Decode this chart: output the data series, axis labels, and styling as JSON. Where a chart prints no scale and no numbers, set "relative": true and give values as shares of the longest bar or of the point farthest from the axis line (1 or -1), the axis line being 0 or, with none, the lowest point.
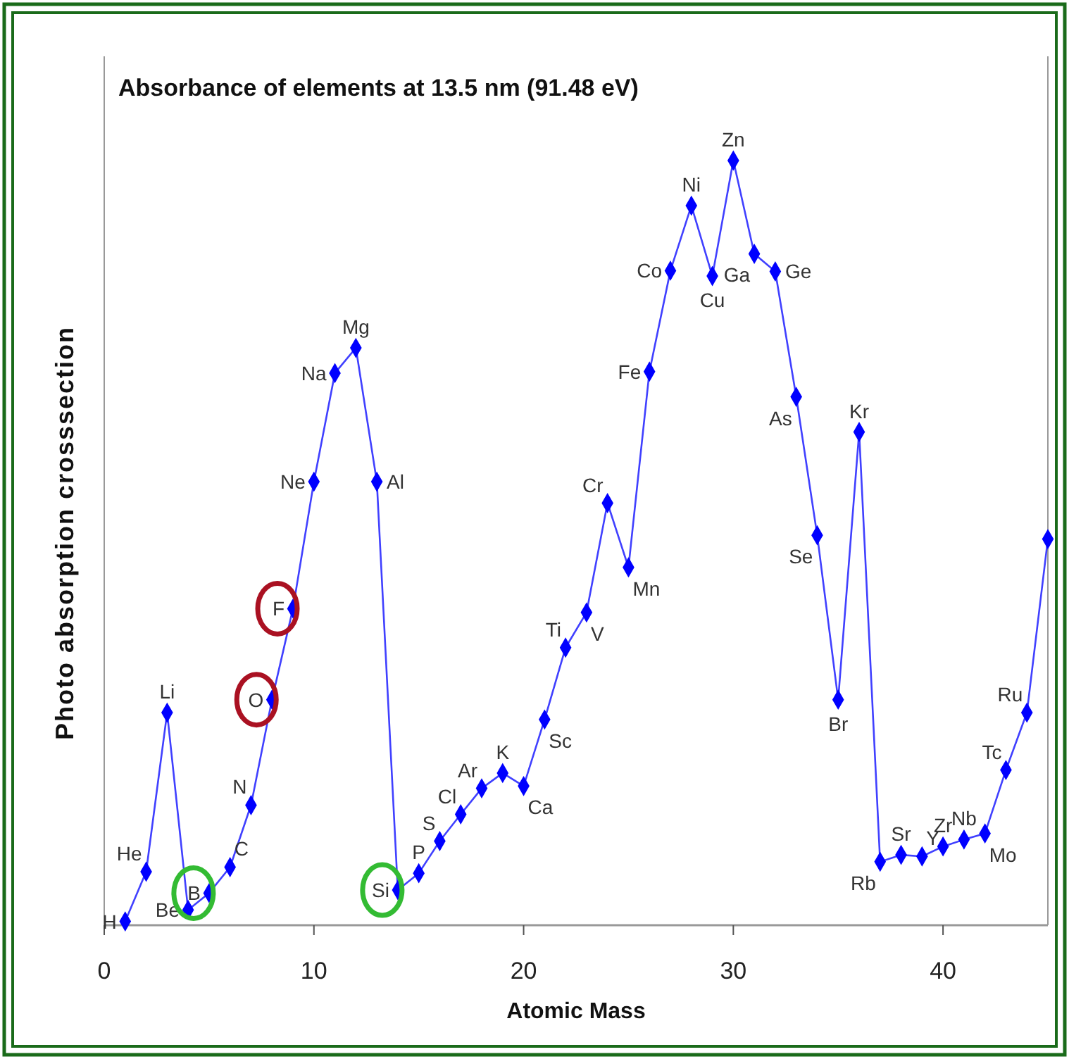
{
  "chart_data": {
    "type": "line",
    "title": "Absorbance of elements at 13.5 nm (91.48 eV)",
    "xlabel": "Atomic Mass",
    "ylabel": "Photo absorption crosssection",
    "relative": true,
    "marker": "diamond",
    "line_style": "solid",
    "xlim": [
      0,
      45
    ],
    "xticks": [
      0,
      10,
      20,
      30,
      40
    ],
    "x": [
      1,
      2,
      3,
      4,
      5,
      6,
      7,
      8,
      9,
      10,
      11,
      12,
      13,
      14,
      15,
      16,
      17,
      18,
      19,
      20,
      21,
      22,
      23,
      24,
      25,
      26,
      27,
      28,
      29,
      30,
      31,
      32,
      33,
      34,
      35,
      36,
      37,
      38,
      39,
      40,
      41,
      42,
      43,
      44,
      45
    ],
    "series": [
      {
        "color": "#0000ff",
        "values": [
          0.005,
          0.07,
          0.278,
          0.02,
          0.042,
          0.076,
          0.157,
          0.295,
          0.414,
          0.58,
          0.722,
          0.755,
          0.58,
          0.046,
          0.068,
          0.11,
          0.145,
          0.179,
          0.199,
          0.182,
          0.269,
          0.363,
          0.409,
          0.552,
          0.468,
          0.724,
          0.856,
          0.941,
          0.849,
          1,
          0.878,
          0.855,
          0.691,
          0.51,
          0.295,
          0.645,
          0.083,
          0.092,
          0.09,
          0.103,
          0.112,
          0.12,
          0.203,
          0.278,
          0.505
        ]
      }
    ],
    "annotations": [
      {
        "text": "H",
        "x": 1,
        "y": 0.005
      },
      {
        "text": "He",
        "x": 2,
        "y": 0.07
      },
      {
        "text": "Li",
        "x": 3,
        "y": 0.278
      },
      {
        "text": "Be",
        "x": 4,
        "y": 0.02
      },
      {
        "text": "B",
        "x": 5,
        "y": 0.042
      },
      {
        "text": "C",
        "x": 6,
        "y": 0.076
      },
      {
        "text": "N",
        "x": 7,
        "y": 0.157
      },
      {
        "text": "O",
        "x": 8,
        "y": 0.295
      },
      {
        "text": "F",
        "x": 9,
        "y": 0.414
      },
      {
        "text": "Ne",
        "x": 10,
        "y": 0.58
      },
      {
        "text": "Na",
        "x": 11,
        "y": 0.722
      },
      {
        "text": "Mg",
        "x": 12,
        "y": 0.755
      },
      {
        "text": "Al",
        "x": 13,
        "y": 0.58
      },
      {
        "text": "Si",
        "x": 14,
        "y": 0.046
      },
      {
        "text": "P",
        "x": 15,
        "y": 0.068
      },
      {
        "text": "S",
        "x": 16,
        "y": 0.11
      },
      {
        "text": "Cl",
        "x": 17,
        "y": 0.145
      },
      {
        "text": "Ar",
        "x": 18,
        "y": 0.179
      },
      {
        "text": "K",
        "x": 19,
        "y": 0.199
      },
      {
        "text": "Ca",
        "x": 20,
        "y": 0.182
      },
      {
        "text": "Sc",
        "x": 21,
        "y": 0.269
      },
      {
        "text": "Ti",
        "x": 22,
        "y": 0.363
      },
      {
        "text": "V",
        "x": 23,
        "y": 0.409
      },
      {
        "text": "Cr",
        "x": 24,
        "y": 0.552
      },
      {
        "text": "Mn",
        "x": 25,
        "y": 0.468
      },
      {
        "text": "Fe",
        "x": 26,
        "y": 0.724
      },
      {
        "text": "Co",
        "x": 27,
        "y": 0.856
      },
      {
        "text": "Ni",
        "x": 28,
        "y": 0.941
      },
      {
        "text": "Cu",
        "x": 29,
        "y": 0.849
      },
      {
        "text": "Zn",
        "x": 30,
        "y": 1
      },
      {
        "text": "Ga",
        "x": 31,
        "y": 0.878
      },
      {
        "text": "Ge",
        "x": 32,
        "y": 0.855
      },
      {
        "text": "As",
        "x": 33,
        "y": 0.691
      },
      {
        "text": "Se",
        "x": 34,
        "y": 0.51
      },
      {
        "text": "Br",
        "x": 35,
        "y": 0.295
      },
      {
        "text": "Kr",
        "x": 36,
        "y": 0.645
      },
      {
        "text": "Rb",
        "x": 37,
        "y": 0.083
      },
      {
        "text": "Sr",
        "x": 38,
        "y": 0.092
      },
      {
        "text": "Y",
        "x": 39,
        "y": 0.09
      },
      {
        "text": "Zr",
        "x": 40,
        "y": 0.103
      },
      {
        "text": "Nb",
        "x": 41,
        "y": 0.112
      },
      {
        "text": "Mo",
        "x": 42,
        "y": 0.12
      },
      {
        "text": "Tc",
        "x": 43,
        "y": 0.203
      },
      {
        "text": "Ru",
        "x": 44,
        "y": 0.278
      }
    ]
  }
}
